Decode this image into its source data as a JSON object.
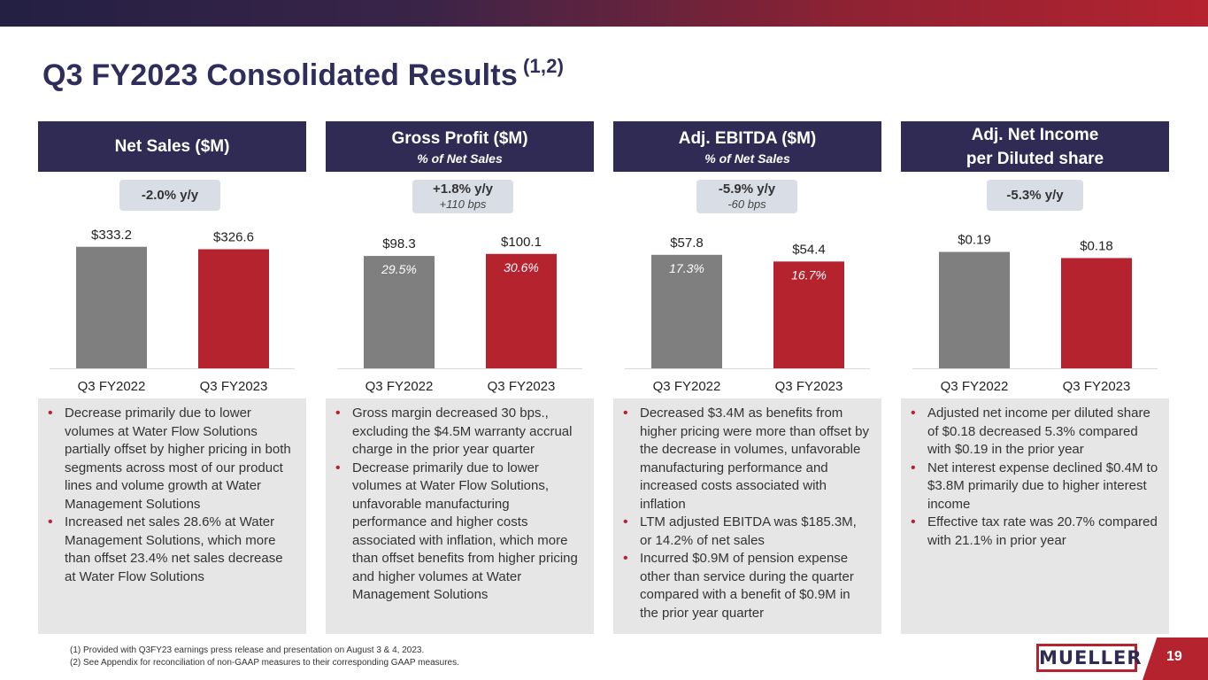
{
  "slide": {
    "title": "Q3 FY2023 Consolidated Results",
    "title_sup": "(1,2)",
    "footnotes": [
      "(1)  Provided with Q3FY23 earnings press release and presentation on August 3 & 4, 2023.",
      "(2)  See Appendix for reconciliation of non-GAAP measures to their corresponding GAAP measures."
    ],
    "logo": "MUELLER",
    "page_number": "19"
  },
  "colors": {
    "prior": "#7f7f7f",
    "current": "#b5232f",
    "header": "#2f2b55",
    "accent": "#b5232f"
  },
  "panels": [
    {
      "header": "Net Sales ($M)",
      "subheader": "",
      "badge_main": "-2.0% y/y",
      "badge_sub": "",
      "bullets": [
        "Decrease primarily due to lower volumes at Water Flow Solutions partially offset by higher pricing in both segments across most of our product lines and volume growth at Water Management Solutions",
        "Increased net sales 28.6% at Water Management Solutions, which more than offset 23.4% net sales decrease at Water Flow Solutions"
      ]
    },
    {
      "header": "Gross Profit ($M)",
      "subheader": "% of Net Sales",
      "badge_main": "+1.8% y/y",
      "badge_sub": "+110 bps",
      "bullets": [
        "Gross margin decreased 30 bps., excluding the $4.5M warranty accrual charge in the prior year quarter",
        "Decrease primarily due to lower volumes at Water Flow Solutions, unfavorable manufacturing performance and higher costs associated with inflation, which more than offset benefits from higher pricing and higher volumes at Water Management Solutions"
      ]
    },
    {
      "header": "Adj. EBITDA ($M)",
      "subheader": "% of Net Sales",
      "badge_main": "-5.9% y/y",
      "badge_sub": "-60 bps",
      "bullets": [
        "Decreased $3.4M as benefits from higher pricing were more than offset by the decrease in volumes, unfavorable manufacturing performance and increased costs associated with inflation",
        "LTM adjusted EBITDA was $185.3M, or 14.2% of net sales",
        "Incurred $0.9M of pension expense other than service during the quarter compared with a benefit of $0.9M in the prior year quarter"
      ]
    },
    {
      "header": "Adj. Net Income",
      "subheader": "per Diluted share",
      "badge_main": "-5.3% y/y",
      "badge_sub": "",
      "bullets": [
        "Adjusted net income per diluted share of $0.18 decreased 5.3% compared with $0.19 in the prior year",
        "Net interest expense declined $0.4M to $3.8M primarily due to higher interest income",
        "Effective tax rate was 20.7% compared with 21.1% in prior year"
      ]
    }
  ],
  "chart_data": [
    {
      "type": "bar",
      "title": "Net Sales ($M)",
      "categories": [
        "Q3 FY2022",
        "Q3 FY2023"
      ],
      "values": [
        333.2,
        326.6
      ],
      "labels": [
        "$333.2",
        "$326.6"
      ],
      "inner_labels": [
        "",
        ""
      ],
      "ylim": [
        0,
        420
      ]
    },
    {
      "type": "bar",
      "title": "Gross Profit ($M)",
      "categories": [
        "Q3 FY2022",
        "Q3 FY2023"
      ],
      "values": [
        98.3,
        100.1
      ],
      "labels": [
        "$98.3",
        "$100.1"
      ],
      "inner_labels": [
        "29.5%",
        "30.6%"
      ],
      "ylim": [
        0,
        134
      ]
    },
    {
      "type": "bar",
      "title": "Adj. EBITDA ($M)",
      "categories": [
        "Q3 FY2022",
        "Q3 FY2023"
      ],
      "values": [
        57.8,
        54.4
      ],
      "labels": [
        "$57.8",
        "$54.4"
      ],
      "inner_labels": [
        "17.3%",
        "16.7%"
      ],
      "ylim": [
        0,
        78
      ]
    },
    {
      "type": "bar",
      "title": "Adj. Net Income per Diluted share",
      "categories": [
        "Q3 FY2022",
        "Q3 FY2023"
      ],
      "values": [
        0.19,
        0.18
      ],
      "labels": [
        "$0.19",
        "$0.18"
      ],
      "inner_labels": [
        "",
        ""
      ],
      "ylim": [
        0,
        0.25
      ]
    }
  ]
}
